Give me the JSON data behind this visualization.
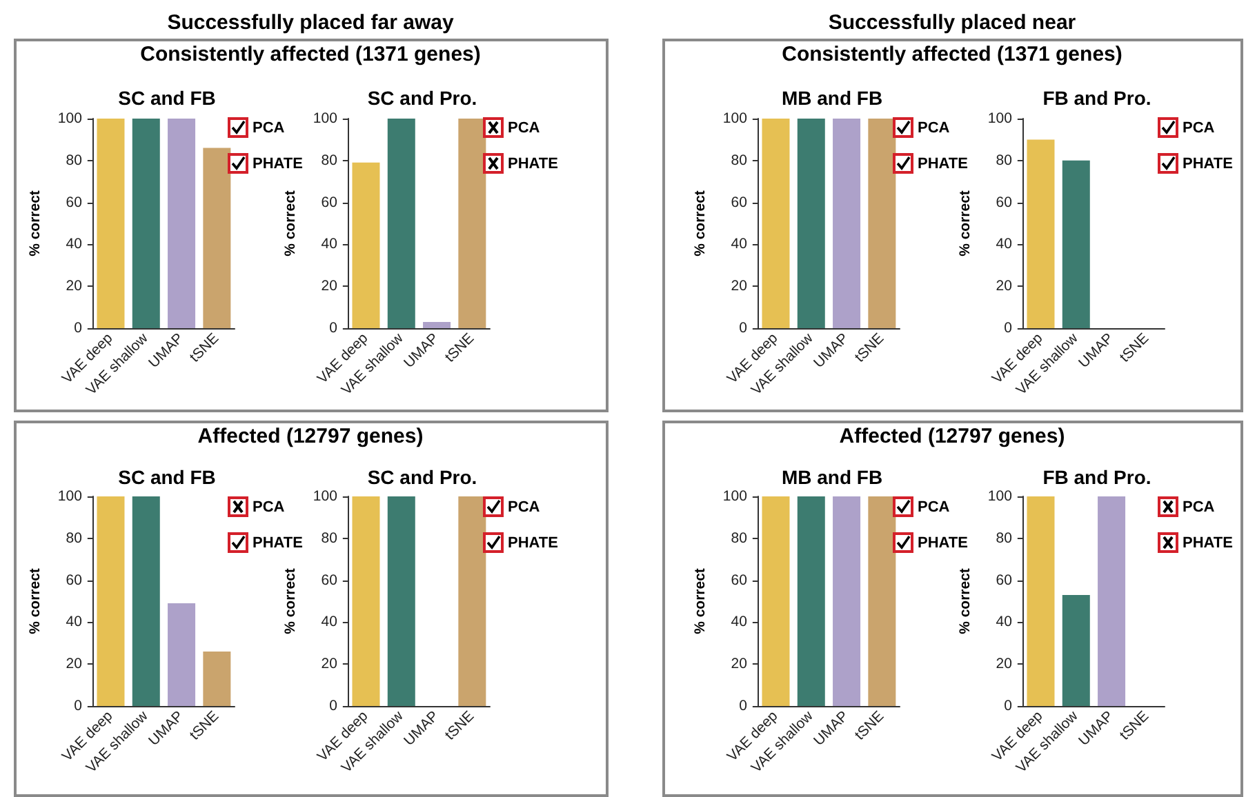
{
  "chart_data": [
    {
      "type": "bar",
      "title": "SC and FB",
      "ylabel": "% correct",
      "categories": [
        "VAE deep",
        "VAE shallow",
        "UMAP",
        "tSNE"
      ],
      "values": [
        100,
        100,
        100,
        86
      ],
      "colors": [
        "#e6c053",
        "#3d7c70",
        "#ada1c9",
        "#caa46d"
      ],
      "ylim": [
        0,
        100
      ],
      "yticks": [
        0,
        20,
        40,
        60,
        80,
        100
      ],
      "annotations": [
        "Successfully placed far away",
        "Consistently affected (1371 genes)",
        "PCA",
        "PHATE"
      ]
    },
    {
      "type": "bar",
      "title": "SC and Pro.",
      "ylabel": "% correct",
      "categories": [
        "VAE deep",
        "VAE shallow",
        "UMAP",
        "tSNE"
      ],
      "values": [
        79,
        100,
        3,
        100
      ],
      "colors": [
        "#e6c053",
        "#3d7c70",
        "#ada1c9",
        "#caa46d"
      ],
      "ylim": [
        0,
        100
      ],
      "yticks": [
        0,
        20,
        40,
        60,
        80,
        100
      ],
      "annotations": [
        "PCA",
        "PHATE"
      ]
    },
    {
      "type": "bar",
      "title": "MB and FB",
      "ylabel": "% correct",
      "categories": [
        "VAE deep",
        "VAE shallow",
        "UMAP",
        "tSNE"
      ],
      "values": [
        100,
        100,
        100,
        100
      ],
      "colors": [
        "#e6c053",
        "#3d7c70",
        "#ada1c9",
        "#caa46d"
      ],
      "ylim": [
        0,
        100
      ],
      "yticks": [
        0,
        20,
        40,
        60,
        80,
        100
      ],
      "annotations": [
        "Successfully placed near",
        "Consistently affected (1371 genes)",
        "PCA",
        "PHATE"
      ]
    },
    {
      "type": "bar",
      "title": "FB and Pro.",
      "ylabel": "% correct",
      "categories": [
        "VAE deep",
        "VAE shallow",
        "UMAP",
        "tSNE"
      ],
      "values": [
        90,
        80,
        0,
        0
      ],
      "colors": [
        "#e6c053",
        "#3d7c70",
        "#ada1c9",
        "#caa46d"
      ],
      "ylim": [
        0,
        100
      ],
      "yticks": [
        0,
        20,
        40,
        60,
        80,
        100
      ],
      "annotations": [
        "PCA",
        "PHATE"
      ]
    },
    {
      "type": "bar",
      "title": "SC and FB",
      "ylabel": "% correct",
      "categories": [
        "VAE deep",
        "VAE shallow",
        "UMAP",
        "tSNE"
      ],
      "values": [
        100,
        100,
        49,
        26
      ],
      "colors": [
        "#e6c053",
        "#3d7c70",
        "#ada1c9",
        "#caa46d"
      ],
      "ylim": [
        0,
        100
      ],
      "yticks": [
        0,
        20,
        40,
        60,
        80,
        100
      ],
      "annotations": [
        "Affected (12797 genes)",
        "PCA",
        "PHATE"
      ]
    },
    {
      "type": "bar",
      "title": "SC and Pro.",
      "ylabel": "% correct",
      "categories": [
        "VAE deep",
        "VAE shallow",
        "UMAP",
        "tSNE"
      ],
      "values": [
        100,
        100,
        0,
        100
      ],
      "colors": [
        "#e6c053",
        "#3d7c70",
        "#ada1c9",
        "#caa46d"
      ],
      "ylim": [
        0,
        100
      ],
      "yticks": [
        0,
        20,
        40,
        60,
        80,
        100
      ],
      "annotations": [
        "PCA",
        "PHATE"
      ]
    },
    {
      "type": "bar",
      "title": "MB and FB",
      "ylabel": "% correct",
      "categories": [
        "VAE deep",
        "VAE shallow",
        "UMAP",
        "tSNE"
      ],
      "values": [
        100,
        100,
        100,
        100
      ],
      "colors": [
        "#e6c053",
        "#3d7c70",
        "#ada1c9",
        "#caa46d"
      ],
      "ylim": [
        0,
        100
      ],
      "yticks": [
        0,
        20,
        40,
        60,
        80,
        100
      ],
      "annotations": [
        "Affected (12797 genes)",
        "PCA",
        "PHATE"
      ]
    },
    {
      "type": "bar",
      "title": "FB and Pro.",
      "ylabel": "% correct",
      "categories": [
        "VAE deep",
        "VAE shallow",
        "UMAP",
        "tSNE"
      ],
      "values": [
        100,
        53,
        100,
        0
      ],
      "colors": [
        "#e6c053",
        "#3d7c70",
        "#ada1c9",
        "#caa46d"
      ],
      "ylim": [
        0,
        100
      ],
      "yticks": [
        0,
        20,
        40,
        60,
        80,
        100
      ],
      "annotations": [
        "PCA",
        "PHATE"
      ]
    }
  ]
}
